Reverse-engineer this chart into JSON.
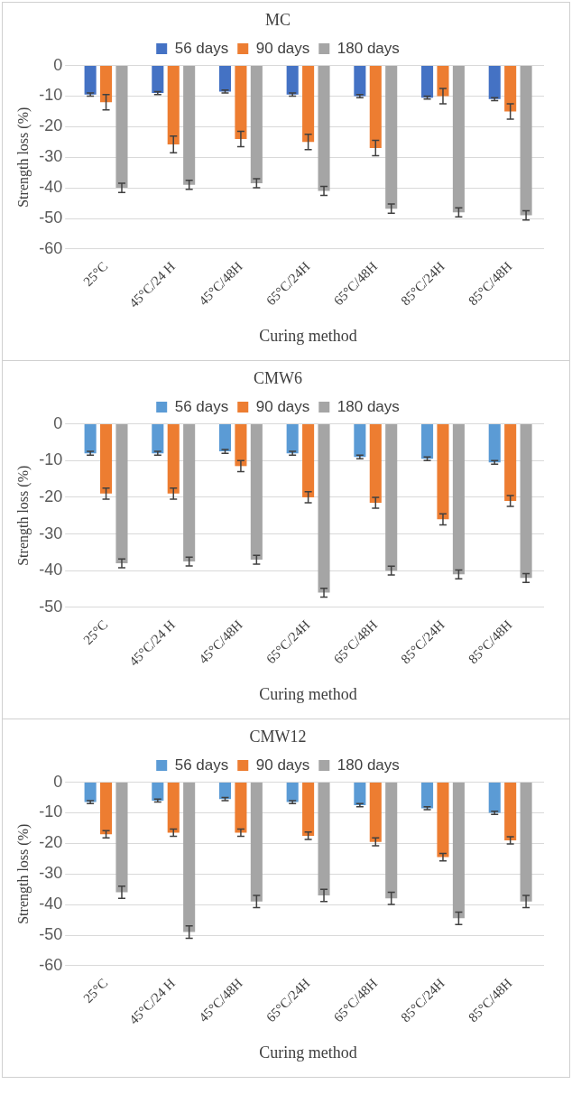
{
  "chart_data": [
    {
      "type": "bar",
      "title": "MC",
      "xlabel": "Curing method",
      "ylabel": "Strength loss (%)",
      "categories": [
        "25°C",
        "45°C/24 H",
        "45°C/48H",
        "65°C/24H",
        "65°C/48H",
        "85°C/24H",
        "85°C/48H"
      ],
      "series": [
        {
          "name": "56 days",
          "color": "#4472c4",
          "values": [
            -9.5,
            -9,
            -8.5,
            -9.5,
            -10,
            -10.5,
            -11
          ],
          "errors": [
            0.5,
            0.5,
            0.5,
            0.5,
            0.5,
            0.5,
            0.5
          ]
        },
        {
          "name": "90 days",
          "color": "#ed7d31",
          "values": [
            -12,
            -25.8,
            -24,
            -25,
            -27,
            -10,
            -15
          ],
          "errors": [
            2.5,
            2.7,
            2.5,
            2.5,
            2.5,
            2.5,
            2.5
          ]
        },
        {
          "name": "180 days",
          "color": "#a5a5a5",
          "values": [
            -40,
            -39,
            -38.5,
            -41,
            -46.8,
            -48,
            -49
          ],
          "errors": [
            1.5,
            1.5,
            1.5,
            1.5,
            1.5,
            1.5,
            1.5
          ]
        }
      ],
      "ylim": [
        -60,
        0
      ],
      "yticks": [
        -60,
        -50,
        -40,
        -30,
        -20,
        -10,
        0
      ],
      "grid": "y",
      "legend": "top"
    },
    {
      "type": "bar",
      "title": "CMW6",
      "xlabel": "Curing method",
      "ylabel": "Strength loss (%)",
      "categories": [
        "25°C",
        "45°C/24 H",
        "45°C/48H",
        "65°C/24H",
        "65°C/48H",
        "85°C/24H",
        "85°C/48H"
      ],
      "series": [
        {
          "name": "56 days",
          "color": "#5b9bd5",
          "values": [
            -8,
            -8,
            -7.5,
            -8,
            -9,
            -9.5,
            -10.5
          ],
          "errors": [
            0.5,
            0.5,
            0.5,
            0.5,
            0.5,
            0.5,
            0.5
          ]
        },
        {
          "name": "90 days",
          "color": "#ed7d31",
          "values": [
            -19,
            -19,
            -11.5,
            -20,
            -21.5,
            -26,
            -21
          ],
          "errors": [
            1.5,
            1.5,
            1.5,
            1.5,
            1.5,
            1.5,
            1.5
          ]
        },
        {
          "name": "180 days",
          "color": "#a5a5a5",
          "values": [
            -38,
            -37.5,
            -37,
            -46,
            -40,
            -41,
            -42
          ],
          "errors": [
            1.2,
            1.2,
            1.2,
            1.2,
            1.2,
            1.2,
            1.2
          ]
        }
      ],
      "ylim": [
        -50,
        0
      ],
      "yticks": [
        -50,
        -40,
        -30,
        -20,
        -10,
        0
      ],
      "grid": "y",
      "legend": "top"
    },
    {
      "type": "bar",
      "title": "CMW12",
      "xlabel": "Curing method",
      "ylabel": "Strength loss (%)",
      "categories": [
        "25°C",
        "45°C/24 H",
        "45°C/48H",
        "65°C/24H",
        "65°C/48H",
        "85°C/24H",
        "85°C/48H"
      ],
      "series": [
        {
          "name": "56 days",
          "color": "#5b9bd5",
          "values": [
            -6.5,
            -6,
            -5.5,
            -6.5,
            -7.5,
            -8.5,
            -10
          ],
          "errors": [
            0.5,
            0.5,
            0.5,
            0.5,
            0.5,
            0.5,
            0.5
          ]
        },
        {
          "name": "90 days",
          "color": "#ed7d31",
          "values": [
            -17,
            -16.5,
            -16.5,
            -17.5,
            -19.5,
            -24.5,
            -19
          ],
          "errors": [
            1.2,
            1.2,
            1.2,
            1.2,
            1.3,
            1.2,
            1.2
          ]
        },
        {
          "name": "180 days",
          "color": "#a5a5a5",
          "values": [
            -36,
            -49,
            -39,
            -37,
            -38,
            -44.5,
            -39
          ],
          "errors": [
            2,
            2,
            2,
            2,
            2,
            2,
            2
          ]
        }
      ],
      "ylim": [
        -60,
        0
      ],
      "yticks": [
        -60,
        -50,
        -40,
        -30,
        -20,
        -10,
        0
      ],
      "grid": "y",
      "legend": "top"
    }
  ]
}
